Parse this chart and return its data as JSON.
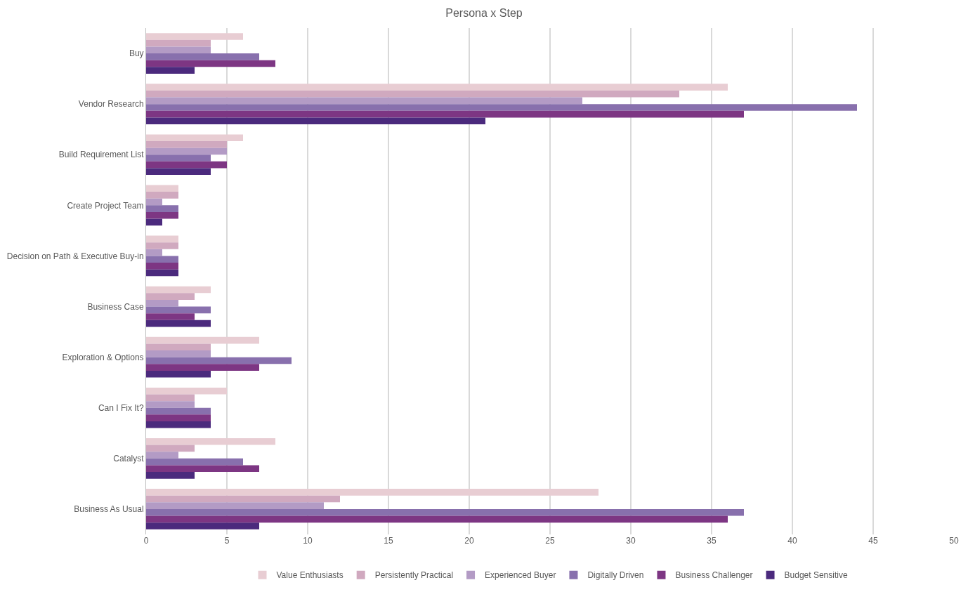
{
  "chart_data": {
    "type": "bar",
    "orientation": "horizontal",
    "title": "Persona x Step",
    "categories": [
      "Buy",
      "Vendor Research",
      "Build Requirement List",
      "Create Project Team",
      "Decision on Path & Executive Buy-in",
      "Business Case",
      "Exploration & Options",
      "Can I Fix It?",
      "Catalyst",
      "Business As Usual"
    ],
    "series": [
      {
        "name": "Value Enthusiasts",
        "color": "#e8cdd3",
        "values": [
          6,
          36,
          6,
          2,
          2,
          4,
          7,
          5,
          8,
          28
        ]
      },
      {
        "name": "Persistently Practical",
        "color": "#d0a9bf",
        "values": [
          4,
          33,
          5,
          2,
          2,
          3,
          4,
          3,
          3,
          12
        ]
      },
      {
        "name": "Experienced Buyer",
        "color": "#b39bc5",
        "values": [
          4,
          27,
          5,
          1,
          1,
          2,
          4,
          3,
          2,
          11
        ]
      },
      {
        "name": "Digitally Driven",
        "color": "#8870ad",
        "values": [
          7,
          44,
          4,
          2,
          2,
          4,
          9,
          4,
          6,
          37
        ]
      },
      {
        "name": "Business Challenger",
        "color": "#7d3683",
        "values": [
          8,
          37,
          5,
          2,
          2,
          3,
          7,
          4,
          7,
          36
        ]
      },
      {
        "name": "Budget Sensitive",
        "color": "#4b2a7d",
        "values": [
          3,
          21,
          4,
          1,
          2,
          4,
          4,
          4,
          3,
          7
        ]
      }
    ],
    "xlim": [
      0,
      50
    ],
    "xticks": [
      0,
      5,
      10,
      15,
      20,
      25,
      30,
      35,
      40,
      45,
      50
    ],
    "grid": "x",
    "legend": "bottom"
  }
}
